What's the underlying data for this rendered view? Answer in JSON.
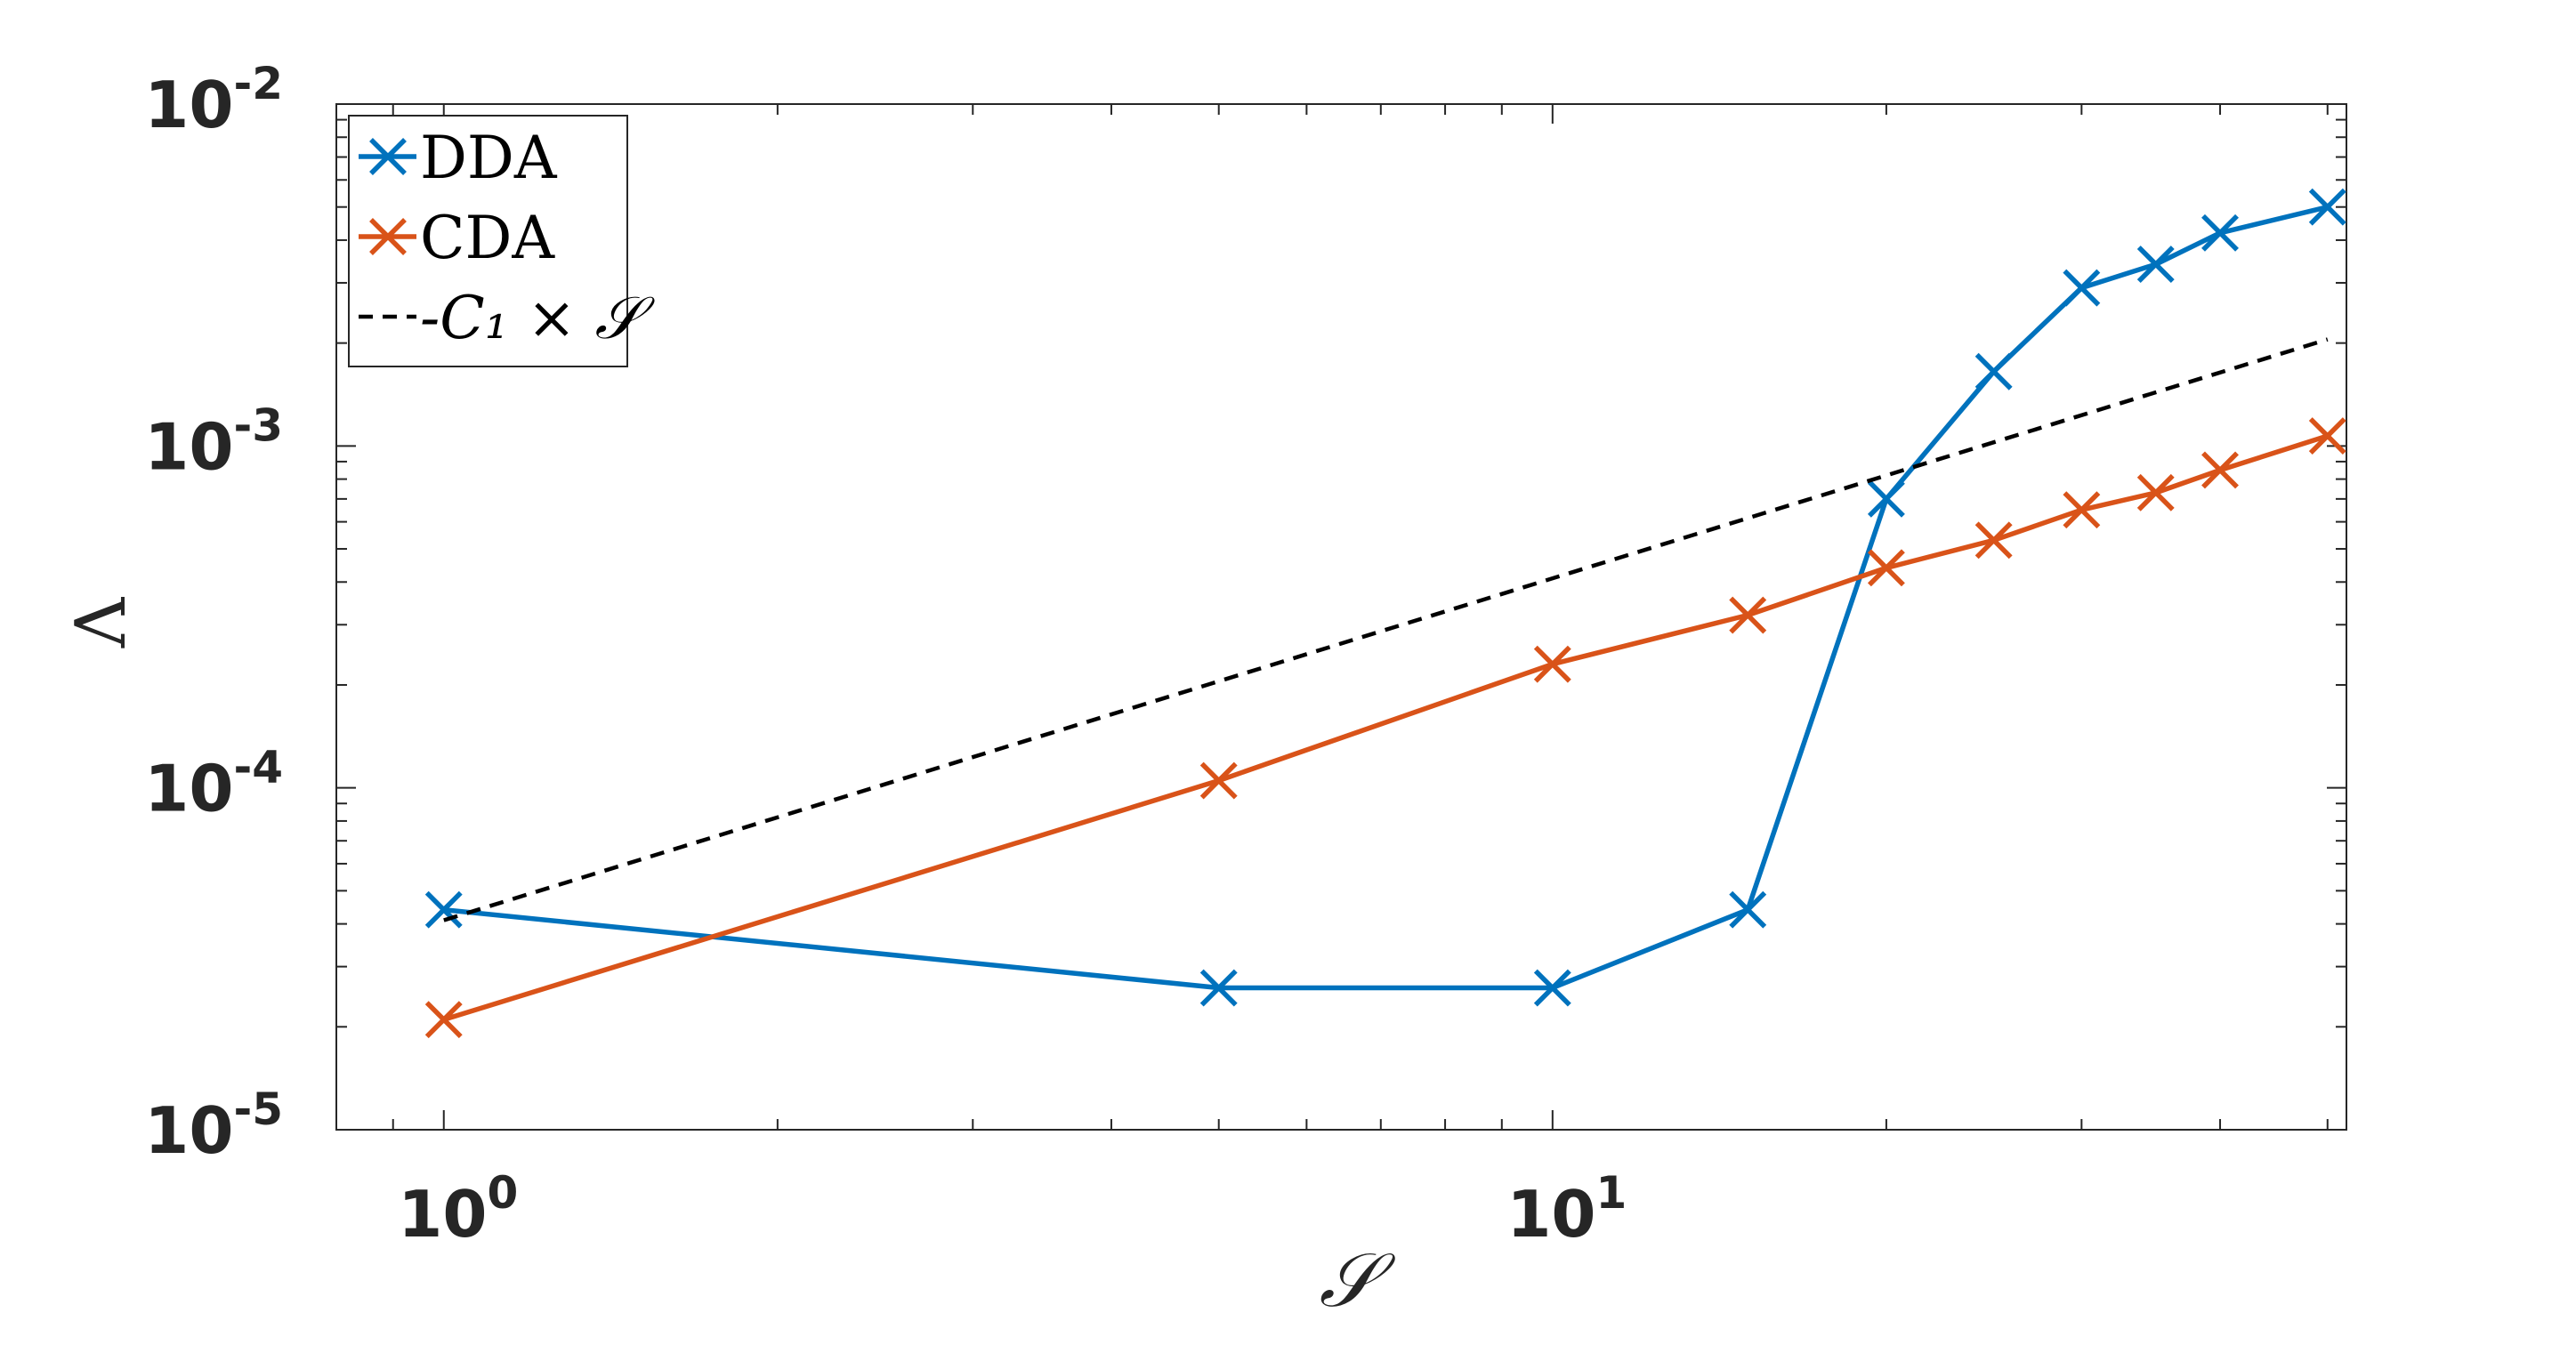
{
  "chart_data": {
    "type": "line",
    "xscale": "log",
    "yscale": "log",
    "xlim": [
      0.8,
      52
    ],
    "ylim": [
      1e-05,
      0.01
    ],
    "xlabel": "𝒮",
    "ylabel": "Λ",
    "grid": false,
    "legend_position": "top-left",
    "x_ticks": [
      {
        "value": 1,
        "base": "10",
        "exp": "0"
      },
      {
        "value": 10,
        "base": "10",
        "exp": "1"
      }
    ],
    "y_ticks": [
      {
        "value": 1e-05,
        "base": "10",
        "exp": "-5"
      },
      {
        "value": 0.0001,
        "base": "10",
        "exp": "-4"
      },
      {
        "value": 0.001,
        "base": "10",
        "exp": "-3"
      },
      {
        "value": 0.01,
        "base": "10",
        "exp": "-2"
      }
    ],
    "series": [
      {
        "name": "DDA",
        "color": "#0072BD",
        "style": "solid",
        "marker": "x",
        "x": [
          1,
          5,
          10,
          15,
          20,
          25,
          30,
          35,
          40,
          50
        ],
        "y": [
          4.4e-05,
          2.6e-05,
          2.6e-05,
          4.4e-05,
          0.0007,
          0.00165,
          0.0029,
          0.0034,
          0.0042,
          0.005
        ]
      },
      {
        "name": "CDA",
        "color": "#D95319",
        "style": "solid",
        "marker": "x",
        "x": [
          1,
          5,
          10,
          15,
          20,
          25,
          30,
          35,
          40,
          50
        ],
        "y": [
          2.1e-05,
          0.000105,
          0.00023,
          0.00032,
          0.00044,
          0.00053,
          0.00065,
          0.00073,
          0.00085,
          0.00107
        ]
      },
      {
        "name": "-C₁ × 𝒮",
        "color": "#000000",
        "style": "dashed",
        "marker": "none",
        "x": [
          1,
          50
        ],
        "y": [
          4.1e-05,
          0.00205
        ]
      }
    ]
  }
}
